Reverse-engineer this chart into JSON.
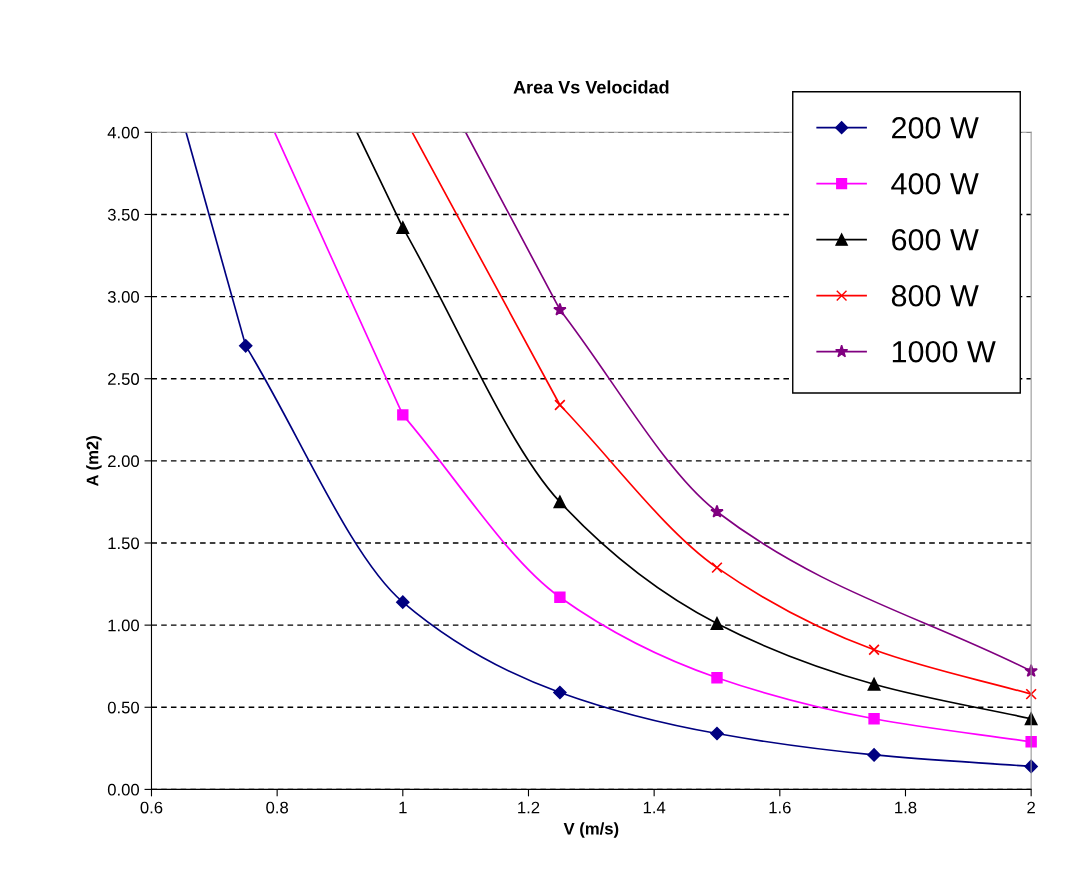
{
  "chart_data": {
    "type": "line",
    "title": "Area Vs Velocidad",
    "xlabel": "V (m/s)",
    "ylabel": "A (m2)",
    "xlim": [
      0.6,
      2
    ],
    "xticks": [
      0.6,
      0.8,
      1,
      1.2,
      1.4,
      1.6,
      1.8,
      2
    ],
    "ylim": [
      0,
      4
    ],
    "yticks": [
      {
        "value": 0,
        "label": "0.00"
      },
      {
        "value": 0.5,
        "label": "0.50"
      },
      {
        "value": 1,
        "label": "1.00"
      },
      {
        "value": 1.5,
        "label": "1.50"
      },
      {
        "value": 2,
        "label": "2.00"
      },
      {
        "value": 2.5,
        "label": "2.50"
      },
      {
        "value": 3,
        "label": "3.00"
      },
      {
        "value": 3.5,
        "label": "3.50"
      },
      {
        "value": 4,
        "label": "4.00"
      }
    ],
    "grid": "y",
    "legend": "top right",
    "series": [
      {
        "name": "200 W",
        "color": "#000080",
        "marker": "diamond",
        "x": [
          0.75,
          1,
          1.25,
          1.5,
          1.75,
          2
        ],
        "values": [
          2.7,
          1.14,
          0.59,
          0.34,
          0.21,
          0.14
        ]
      },
      {
        "name": "400 W",
        "color": "#ff00ff",
        "marker": "square",
        "x": [
          1,
          1.25,
          1.5,
          1.75,
          2
        ],
        "values": [
          2.28,
          1.17,
          0.68,
          0.43,
          0.29
        ]
      },
      {
        "name": "600 W",
        "color": "#000000",
        "marker": "triangle",
        "x": [
          1,
          1.25,
          1.5,
          1.75,
          2
        ],
        "values": [
          3.42,
          1.75,
          1.01,
          0.64,
          0.43
        ]
      },
      {
        "name": "800 W",
        "color": "#ff0000",
        "marker": "cross",
        "x": [
          1.25,
          1.5,
          1.75,
          2
        ],
        "values": [
          2.34,
          1.35,
          0.85,
          0.58
        ]
      },
      {
        "name": "1000 W",
        "color": "#800080",
        "marker": "star",
        "x": [
          1.25,
          1.5,
          2
        ],
        "values": [
          2.92,
          1.69,
          0.72
        ]
      },
      {
        "color": "#000080",
        "marker": "none",
        "x": [
          0.655,
          0.75
        ],
        "values": [
          4,
          2.7
        ]
      },
      {
        "color": "#ff00ff",
        "marker": "none",
        "x": [
          0.796,
          1
        ],
        "values": [
          4,
          2.28
        ]
      },
      {
        "color": "#000000",
        "marker": "none",
        "x": [
          0.927,
          1
        ],
        "values": [
          4,
          3.42
        ]
      },
      {
        "color": "#ff0000",
        "marker": "none",
        "x": [
          1.015,
          1.25
        ],
        "values": [
          4,
          2.34
        ]
      },
      {
        "color": "#800080",
        "marker": "none",
        "x": [
          1.1,
          1.25
        ],
        "values": [
          4,
          2.92
        ]
      }
    ]
  }
}
